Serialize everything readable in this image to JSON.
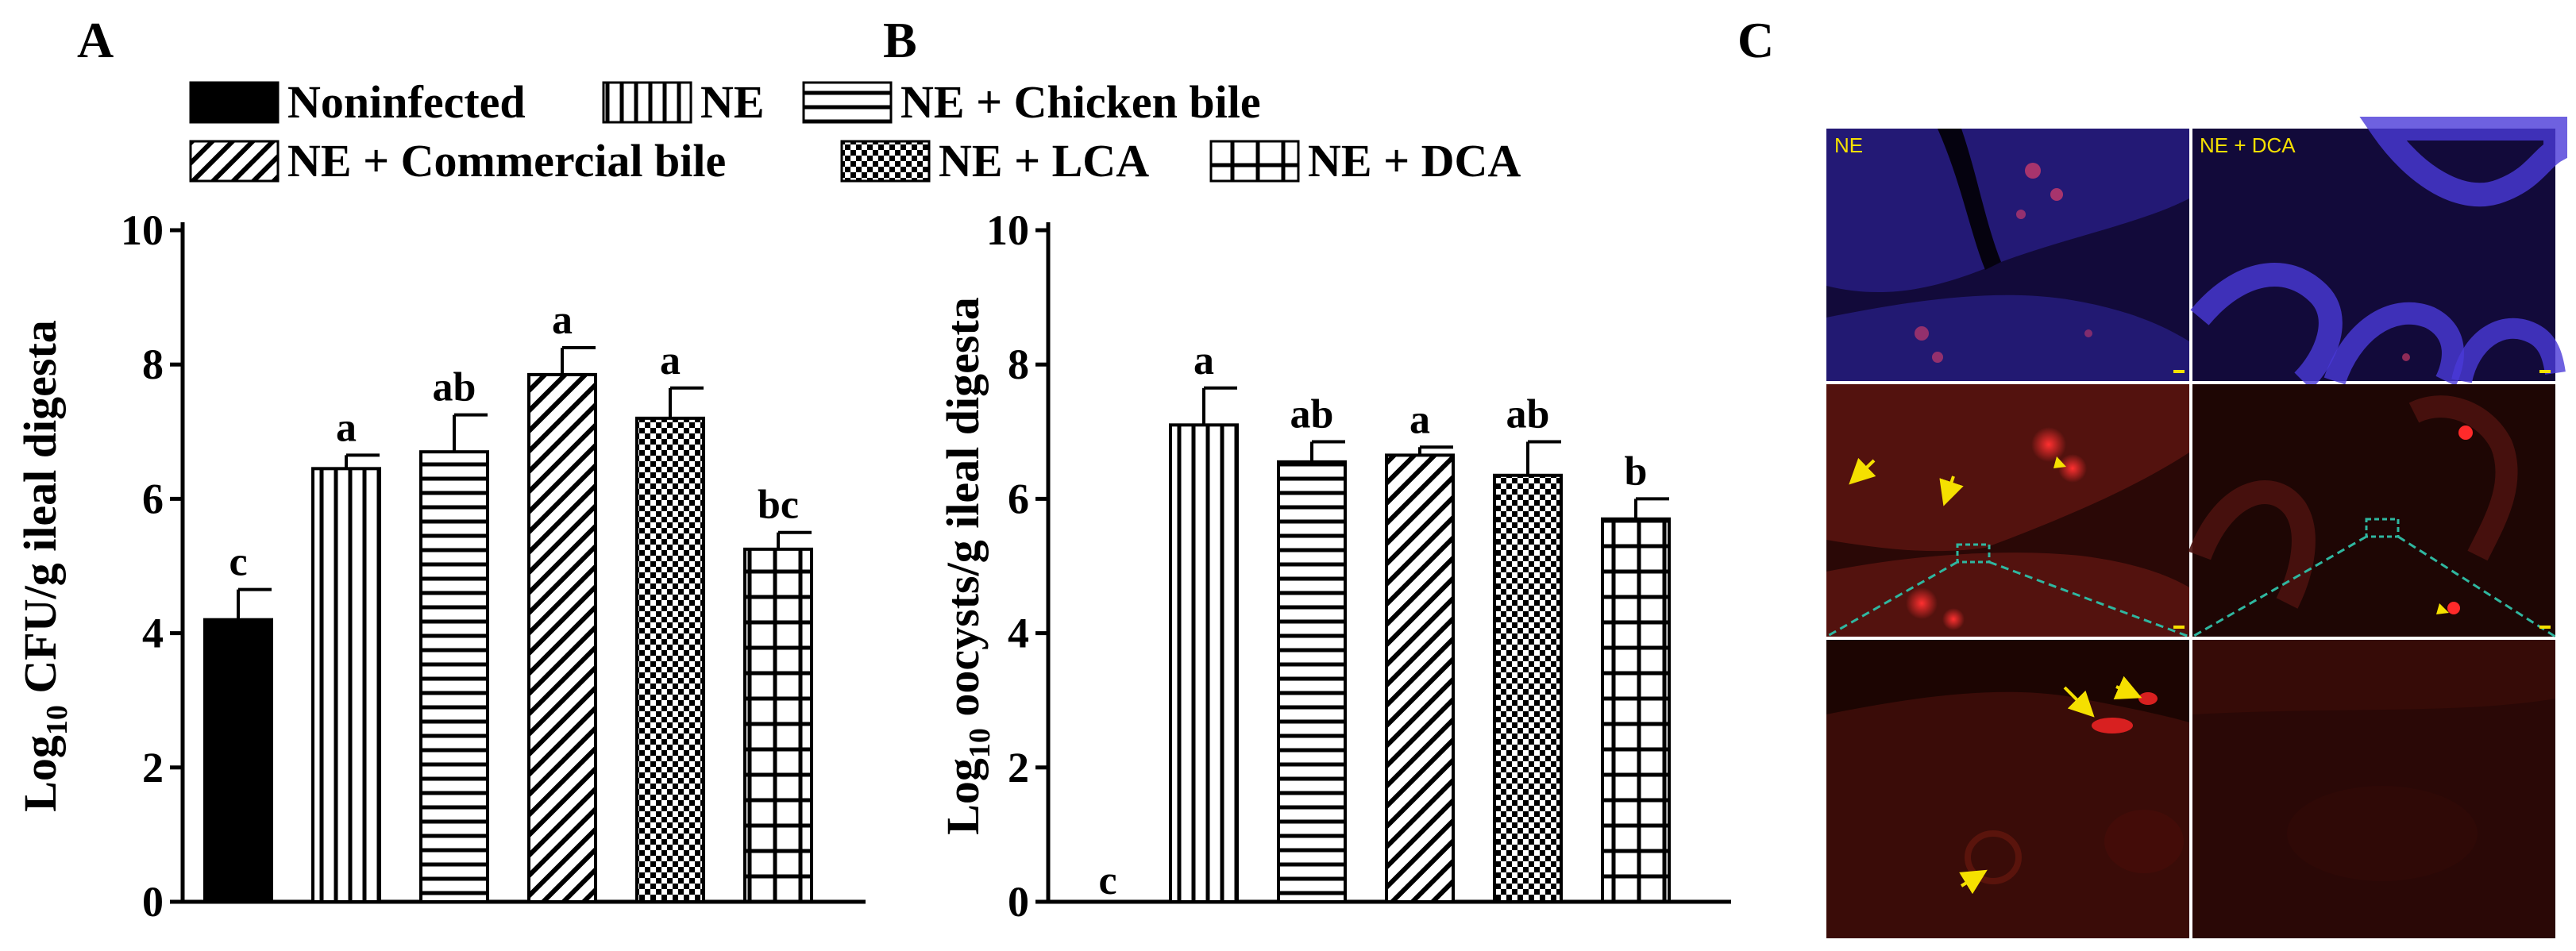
{
  "panels": {
    "a": "A",
    "b": "B",
    "c": "C"
  },
  "legend": [
    {
      "label": "Noninfected",
      "pattern": "solid"
    },
    {
      "label": "NE",
      "pattern": "vlines"
    },
    {
      "label": "NE + Chicken bile",
      "pattern": "hlines"
    },
    {
      "label": "NE + Commercial bile",
      "pattern": "diag"
    },
    {
      "label": "NE + LCA",
      "pattern": "check"
    },
    {
      "label": "NE + DCA",
      "pattern": "grid"
    }
  ],
  "chart_data": [
    {
      "type": "bar",
      "panel": "A",
      "categories": [
        "Noninfected",
        "NE",
        "NE + Chicken bile",
        "NE + Commercial bile",
        "NE + LCA",
        "NE + DCA"
      ],
      "values": [
        4.2,
        6.45,
        6.7,
        7.85,
        7.2,
        5.25
      ],
      "errors": [
        0.45,
        0.2,
        0.55,
        0.4,
        0.45,
        0.25
      ],
      "significance": [
        "c",
        "a",
        "ab",
        "a",
        "a",
        "bc"
      ],
      "ylabel_main": "Log",
      "ylabel_sub": "10",
      "ylabel_rest": " CFU/g ileal digesta",
      "ylim": [
        0,
        10
      ],
      "yticks": [
        "0",
        "2",
        "4",
        "6",
        "8",
        "10"
      ]
    },
    {
      "type": "bar",
      "panel": "B",
      "categories": [
        "Noninfected",
        "NE",
        "NE + Chicken bile",
        "NE + Commercial bile",
        "NE + LCA",
        "NE + DCA"
      ],
      "values": [
        0,
        7.1,
        6.55,
        6.65,
        6.35,
        5.7
      ],
      "errors": [
        0,
        0.55,
        0.3,
        0.12,
        0.5,
        0.3
      ],
      "significance": [
        "c",
        "a",
        "ab",
        "a",
        "ab",
        "b"
      ],
      "ylabel_main": "Log",
      "ylabel_sub": "10",
      "ylabel_rest": " oocysts/g ileal digesta",
      "ylim": [
        0,
        10
      ],
      "yticks": [
        "0",
        "2",
        "4",
        "6",
        "8",
        "10"
      ]
    }
  ],
  "micrographs": {
    "left_label": "NE",
    "right_label": "NE + DCA"
  },
  "colors": {
    "bar_stroke": "#000000",
    "solid_fill": "#000000",
    "nucleus_blue": "#3a2ab8",
    "tissue_red": "#7a1410",
    "arrow_yellow": "#f5e000",
    "dash_teal": "#2fb7a0"
  }
}
